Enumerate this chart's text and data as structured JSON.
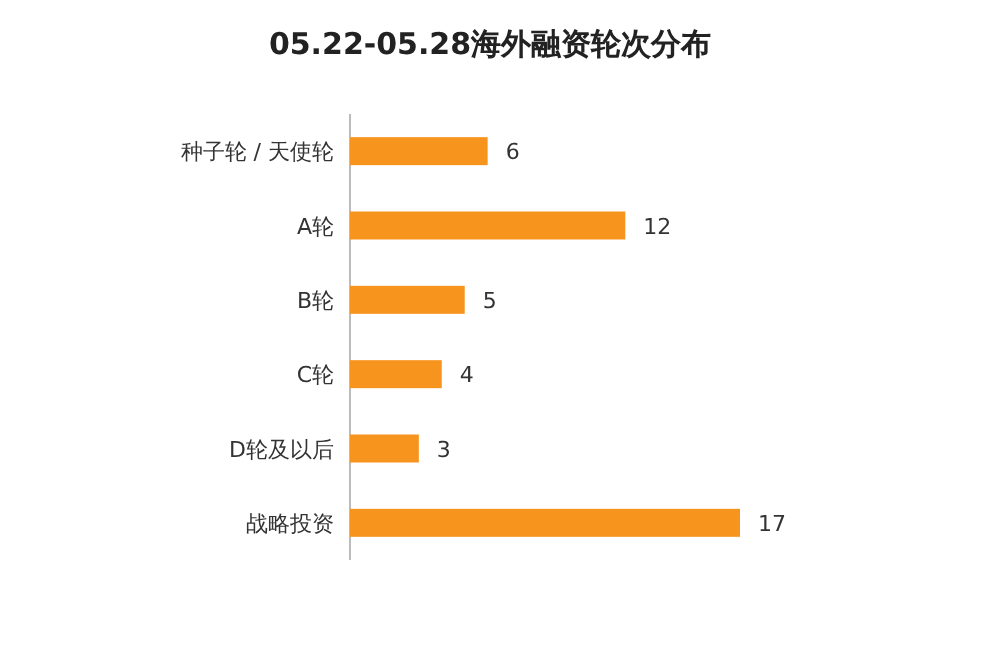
{
  "chart_data": {
    "type": "bar",
    "orientation": "horizontal",
    "title": "05.22-05.28海外融资轮次分布",
    "categories": [
      "种子轮 / 天使轮",
      "A轮",
      "B轮",
      "C轮",
      "D轮及以后",
      "战略投资"
    ],
    "values": [
      6,
      12,
      5,
      4,
      3,
      17
    ],
    "color": "#f7941d",
    "data_labels": true
  }
}
